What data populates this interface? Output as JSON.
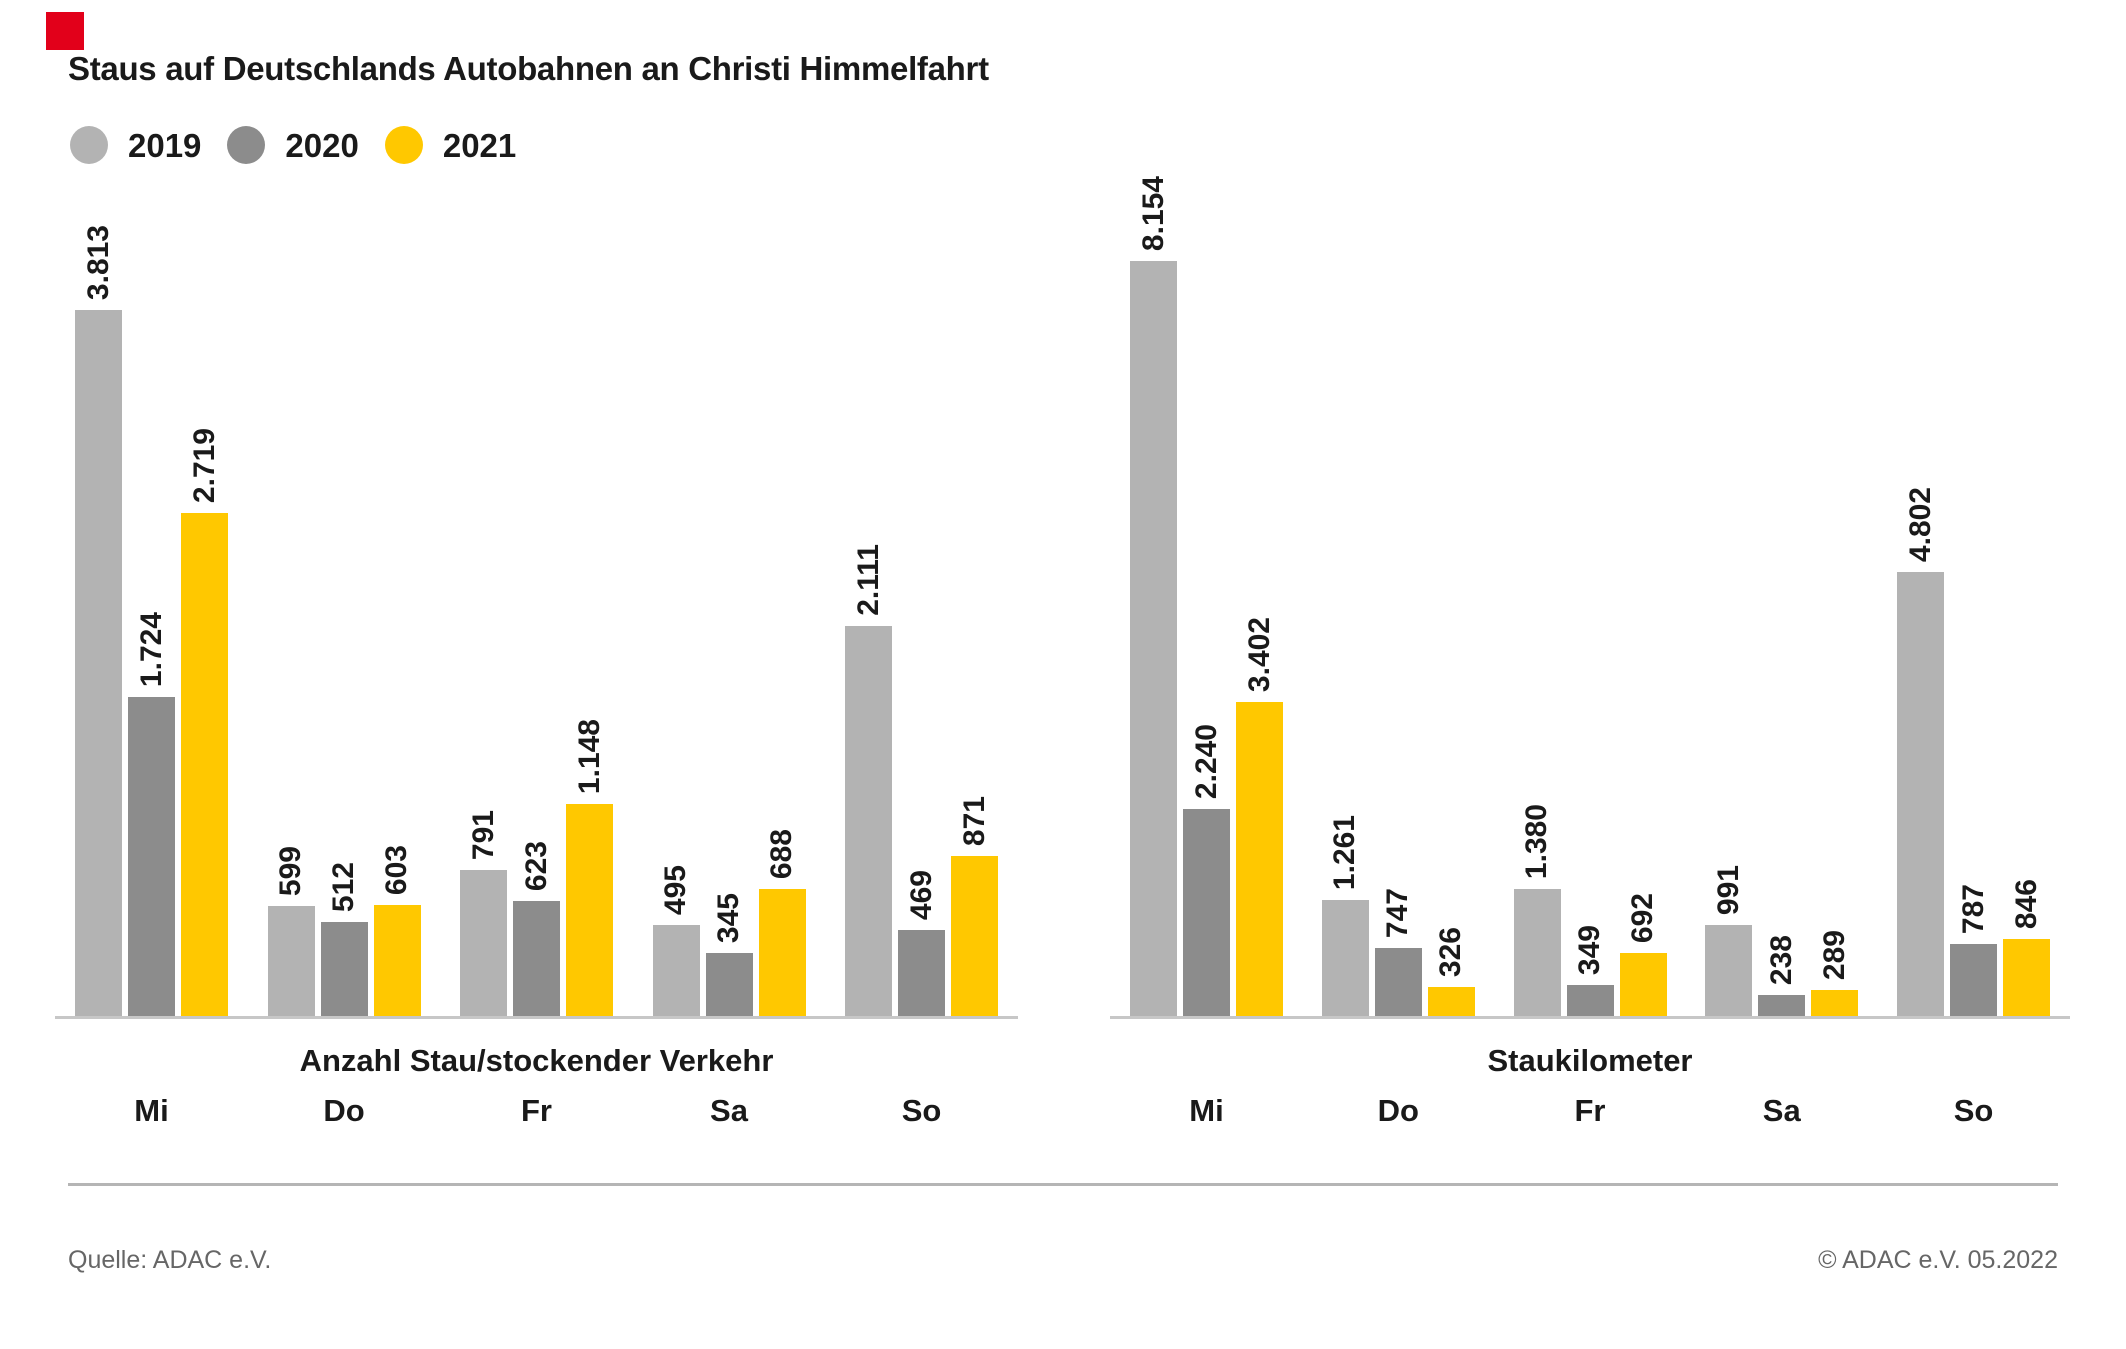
{
  "page": {
    "title": "Staus auf Deutschlands Autobahnen an Christi Himmelfahrt"
  },
  "legend": [
    {
      "label": "2019",
      "color": "#b3b3b3"
    },
    {
      "label": "2020",
      "color": "#8c8c8c"
    },
    {
      "label": "2021",
      "color": "#ffc800"
    }
  ],
  "colors": {
    "bar_2019": "#b3b3b3",
    "bar_2020": "#8c8c8c",
    "bar_2021": "#ffc800",
    "text": "#1a1a1a",
    "footer_text": "#666666",
    "axis_line": "#c7c7c7",
    "divider": "#b5b5b5",
    "red_marker": "#e2001a"
  },
  "red_marker_color": "#e2001a",
  "chart_data": [
    {
      "type": "bar",
      "title": "Anzahl Stau/stockender Verkehr",
      "categories": [
        "Mi",
        "Do",
        "Fr",
        "Sa",
        "So"
      ],
      "ymax": 3813,
      "grid": false,
      "legend_position": "top-left",
      "series": [
        {
          "name": "2019",
          "color": "#b3b3b3",
          "values": [
            3813,
            599,
            791,
            495,
            2111
          ],
          "labels": [
            "3.813",
            "599",
            "791",
            "495",
            "2.111"
          ]
        },
        {
          "name": "2020",
          "color": "#8c8c8c",
          "values": [
            1724,
            512,
            623,
            345,
            469
          ],
          "labels": [
            "1.724",
            "512",
            "623",
            "345",
            "469"
          ]
        },
        {
          "name": "2021",
          "color": "#ffc800",
          "values": [
            2719,
            603,
            1148,
            688,
            871
          ],
          "labels": [
            "2.719",
            "603",
            "1.148",
            "688",
            "871"
          ]
        }
      ]
    },
    {
      "type": "bar",
      "title": "Staukilometer",
      "categories": [
        "Mi",
        "Do",
        "Fr",
        "Sa",
        "So"
      ],
      "ymax": 8154,
      "grid": false,
      "legend_position": "top-left",
      "series": [
        {
          "name": "2019",
          "color": "#b3b3b3",
          "values": [
            8154,
            1261,
            1380,
            991,
            4802
          ],
          "labels": [
            "8.154",
            "1.261",
            "1.380",
            "991",
            "4.802"
          ]
        },
        {
          "name": "2020",
          "color": "#8c8c8c",
          "values": [
            2240,
            747,
            349,
            238,
            787
          ],
          "labels": [
            "2.240",
            "747",
            "349",
            "238",
            "787"
          ]
        },
        {
          "name": "2021",
          "color": "#ffc800",
          "values": [
            3402,
            326,
            692,
            289,
            846
          ],
          "labels": [
            "3.402",
            "326",
            "692",
            "289",
            "846"
          ]
        }
      ]
    }
  ],
  "footer": {
    "source": "Quelle: ADAC e.V.",
    "copyright": "© ADAC e.V. 05.2022"
  }
}
